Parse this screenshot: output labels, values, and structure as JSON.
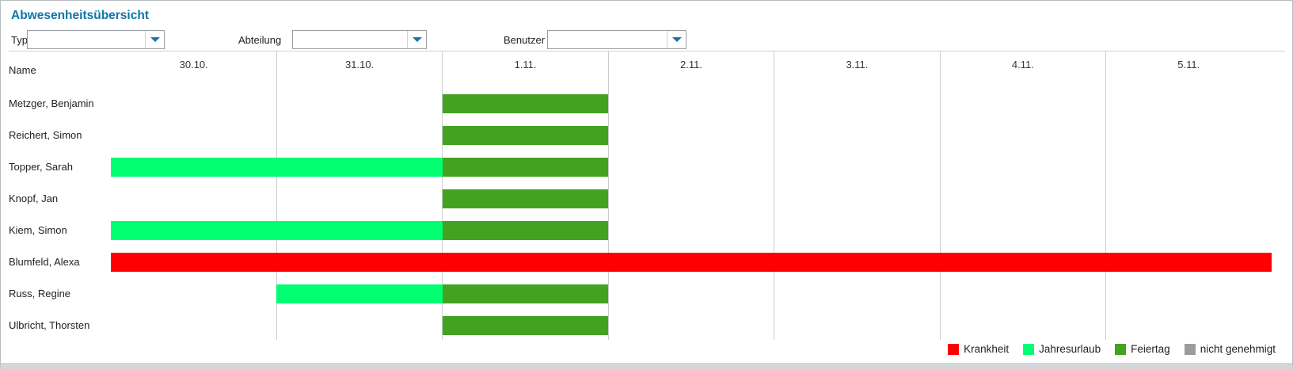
{
  "title": "Abwesenheitsübersicht",
  "filters": [
    {
      "label": "Typ",
      "value": ""
    },
    {
      "label": "Abteilung",
      "value": ""
    },
    {
      "label": "Benutzer",
      "value": ""
    }
  ],
  "chart_data": {
    "type": "gantt",
    "name_header": "Name",
    "days": [
      "30.10.",
      "31.10.",
      "1.11.",
      "2.11.",
      "3.11.",
      "4.11.",
      "5.11."
    ],
    "rows": [
      {
        "name": "Metzger, Benjamin",
        "bars": [
          {
            "type": "feiertag",
            "start": 2,
            "span": 1
          }
        ]
      },
      {
        "name": "Reichert, Simon",
        "bars": [
          {
            "type": "feiertag",
            "start": 2,
            "span": 1
          }
        ]
      },
      {
        "name": "Topper, Sarah",
        "bars": [
          {
            "type": "jahresurlaub",
            "start": 0,
            "span": 2
          },
          {
            "type": "feiertag",
            "start": 2,
            "span": 1
          }
        ]
      },
      {
        "name": "Knopf, Jan",
        "bars": [
          {
            "type": "feiertag",
            "start": 2,
            "span": 1
          }
        ]
      },
      {
        "name": "Kiem, Simon",
        "bars": [
          {
            "type": "jahresurlaub",
            "start": 0,
            "span": 2
          },
          {
            "type": "feiertag",
            "start": 2,
            "span": 1
          }
        ]
      },
      {
        "name": "Blumfeld, Alexa",
        "bars": [
          {
            "type": "krankheit",
            "start": 0,
            "span": 7
          }
        ]
      },
      {
        "name": "Russ, Regine",
        "bars": [
          {
            "type": "jahresurlaub",
            "start": 1,
            "span": 1
          },
          {
            "type": "feiertag",
            "start": 2,
            "span": 1
          }
        ]
      },
      {
        "name": "Ulbricht, Thorsten",
        "bars": [
          {
            "type": "feiertag",
            "start": 2,
            "span": 1
          }
        ]
      }
    ],
    "colors": {
      "krankheit": "#fe0000",
      "jahresurlaub": "#00fe72",
      "feiertag": "#43a321",
      "nicht_genehmigt": "#9c9c9c"
    },
    "legend": [
      {
        "label": "Krankheit",
        "type": "krankheit"
      },
      {
        "label": "Jahresurlaub",
        "type": "jahresurlaub"
      },
      {
        "label": "Feiertag",
        "type": "feiertag"
      },
      {
        "label": "nicht genehmigt",
        "type": "nicht_genehmigt"
      }
    ],
    "accent_color": "#0e76a8"
  }
}
